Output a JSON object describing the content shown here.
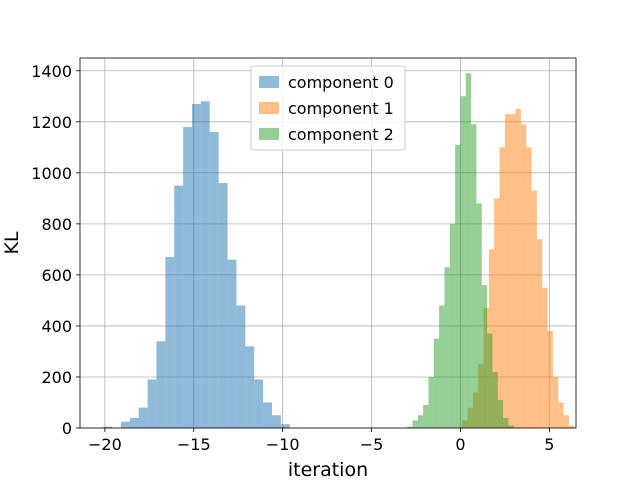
{
  "chart_data": {
    "type": "bar",
    "subtype": "histogram",
    "xlabel": "iteration",
    "ylabel": "KL",
    "xlim": [
      -21.4,
      6.5
    ],
    "ylim": [
      0,
      1450
    ],
    "xticks": [
      -20,
      -15,
      -10,
      -5,
      0,
      5
    ],
    "xtick_labels": [
      "−20",
      "−15",
      "−10",
      "−5",
      "0",
      "5"
    ],
    "yticks": [
      0,
      200,
      400,
      600,
      800,
      1000,
      1200,
      1400
    ],
    "grid": true,
    "legend_position": "top-center",
    "legend": [
      "component 0",
      "component 1",
      "component 2"
    ],
    "series": [
      {
        "name": "component 0",
        "color": "#1f77b4",
        "alpha": 0.5,
        "bin_start": -20.1,
        "bin_width": 0.5,
        "values": [
          5,
          0,
          25,
          40,
          80,
          190,
          340,
          670,
          950,
          1180,
          1270,
          1280,
          1160,
          960,
          660,
          480,
          320,
          190,
          100,
          50,
          15
        ]
      },
      {
        "name": "component 1",
        "color": "#ff7f0e",
        "alpha": 0.5,
        "bin_start": 0.1,
        "bin_width": 0.3,
        "values": [
          30,
          80,
          140,
          250,
          470,
          700,
          900,
          1100,
          1230,
          1230,
          1250,
          1190,
          1100,
          930,
          740,
          550,
          380,
          200,
          100,
          50,
          10
        ]
      },
      {
        "name": "component 2",
        "color": "#2ca02c",
        "alpha": 0.5,
        "bin_start": -3.0,
        "bin_width": 0.3,
        "values": [
          5,
          30,
          50,
          90,
          200,
          350,
          480,
          630,
          800,
          1110,
          1300,
          1390,
          1190,
          880,
          560,
          370,
          220,
          110,
          40,
          10
        ]
      }
    ]
  }
}
